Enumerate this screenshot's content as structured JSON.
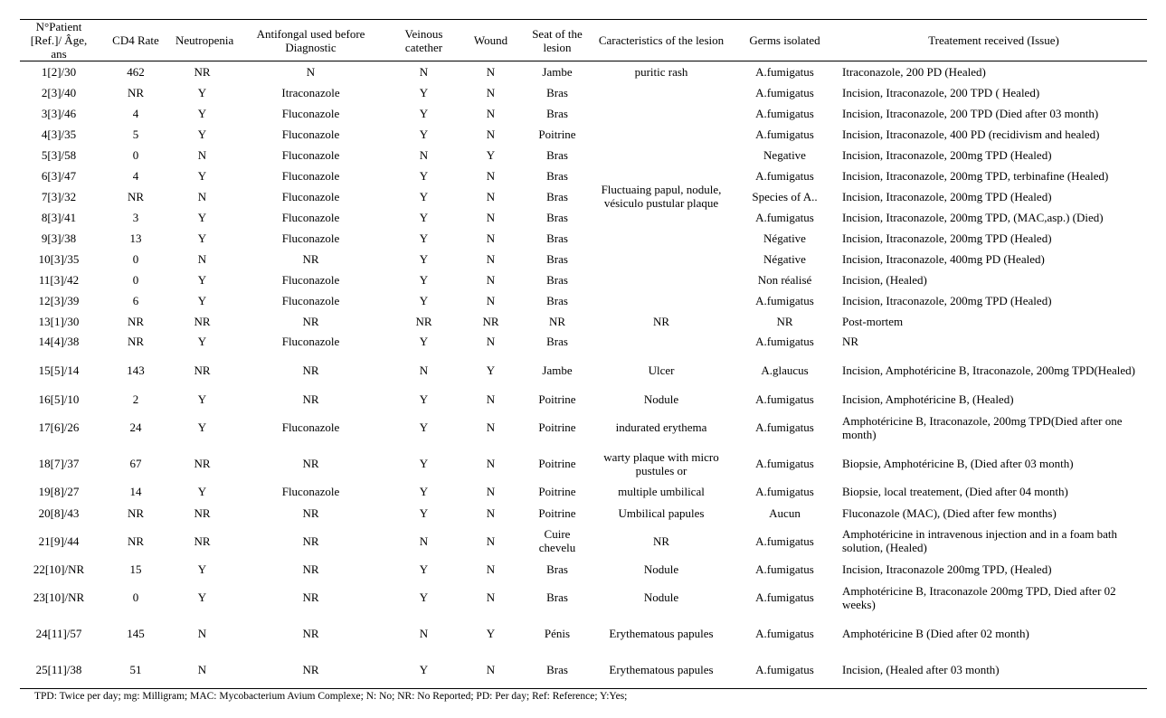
{
  "headers": [
    "N°Patient [Ref.]/ Âge, ans",
    "CD4 Rate",
    "Neutropenia",
    "Antifongal used before Diagnostic",
    "Veinous catether",
    "Wound",
    "Seat of the lesion",
    "Caracteristics of the lesion",
    "Germs isolated",
    "Treatement received (Issue)"
  ],
  "rows": [
    [
      "1[2]/30",
      "462",
      "NR",
      "N",
      "N",
      "N",
      "Jambe",
      "puritic rash",
      "A.fumigatus",
      "Itraconazole, 200 PD (Healed)"
    ],
    [
      "2[3]/40",
      "NR",
      "Y",
      "Itraconazole",
      "Y",
      "N",
      "Bras",
      "Fluctuaing papul, nodule, vésiculo pustular plaque",
      "A.fumigatus",
      "Incision, Itraconazole, 200 TPD ( Healed)"
    ],
    [
      "3[3]/46",
      "4",
      "Y",
      "Fluconazole",
      "Y",
      "N",
      "Bras",
      null,
      "A.fumigatus",
      "Incision, Itraconazole, 200 TPD (Died after 03 month)"
    ],
    [
      "4[3]/35",
      "5",
      "Y",
      "Fluconazole",
      "Y",
      "N",
      "Poitrine",
      null,
      "A.fumigatus",
      "Incision, Itraconazole, 400 PD (recidivism and healed)"
    ],
    [
      "5[3]/58",
      "0",
      "N",
      "Fluconazole",
      "N",
      "Y",
      "Bras",
      null,
      "Negative",
      "Incision, Itraconazole, 200mg TPD (Healed)"
    ],
    [
      "6[3]/47",
      "4",
      "Y",
      "Fluconazole",
      "Y",
      "N",
      "Bras",
      null,
      "A.fumigatus",
      "Incision, Itraconazole, 200mg TPD, terbinafine (Healed)"
    ],
    [
      "7[3]/32",
      "NR",
      "N",
      "Fluconazole",
      "Y",
      "N",
      "Bras",
      null,
      "Species of A..",
      "Incision, Itraconazole, 200mg TPD (Healed)"
    ],
    [
      "8[3]/41",
      "3",
      "Y",
      "Fluconazole",
      "Y",
      "N",
      "Bras",
      null,
      "A.fumigatus",
      "Incision, Itraconazole, 200mg TPD, (MAC,asp.) (Died)"
    ],
    [
      "9[3]/38",
      "13",
      "Y",
      "Fluconazole",
      "Y",
      "N",
      "Bras",
      null,
      "Négative",
      "Incision, Itraconazole, 200mg TPD (Healed)"
    ],
    [
      "10[3]/35",
      "0",
      "N",
      "NR",
      "Y",
      "N",
      "Bras",
      null,
      "Négative",
      "Incision, Itraconazole, 400mg PD (Healed)"
    ],
    [
      "11[3]/42",
      "0",
      "Y",
      "Fluconazole",
      "Y",
      "N",
      "Bras",
      null,
      "Non réalisé",
      "Incision, (Healed)"
    ],
    [
      "12[3]/39",
      "6",
      "Y",
      "Fluconazole",
      "Y",
      "N",
      "Bras",
      null,
      "A.fumigatus",
      "Incision, Itraconazole, 200mg TPD (Healed)"
    ],
    [
      "13[1]/30",
      "NR",
      "NR",
      "NR",
      "NR",
      "NR",
      "NR",
      "NR",
      "NR",
      "Post-mortem"
    ],
    [
      "14[4]/38",
      "NR",
      "Y",
      "Fluconazole",
      "Y",
      "N",
      "Bras",
      "",
      "A.fumigatus",
      "NR"
    ],
    [
      "15[5]/14",
      "143",
      "NR",
      "NR",
      "N",
      "Y",
      "Jambe",
      "Ulcer",
      "A.glaucus",
      "Incision, Amphotéricine B, Itraconazole, 200mg TPD(Healed)"
    ],
    [
      "16[5]/10",
      "2",
      "Y",
      "NR",
      "Y",
      "N",
      "Poitrine",
      "Nodule",
      "A.fumigatus",
      "Incision, Amphotéricine B, (Healed)"
    ],
    [
      "17[6]/26",
      "24",
      "Y",
      "Fluconazole",
      "Y",
      "N",
      "Poitrine",
      "indurated erythema",
      "A.fumigatus",
      "Amphotéricine B, Itraconazole, 200mg TPD(Died after one month)"
    ],
    [
      "18[7]/37",
      "67",
      "NR",
      "NR",
      "Y",
      "N",
      "Poitrine",
      "warty plaque with micro pustules or",
      "A.fumigatus",
      "Biopsie, Amphotéricine B, (Died after 03 month)"
    ],
    [
      "19[8]/27",
      "14",
      "Y",
      "Fluconazole",
      "Y",
      "N",
      "Poitrine",
      "multiple umbilical",
      "A.fumigatus",
      "Biopsie, local treatement, (Died after 04 month)"
    ],
    [
      "20[8]/43",
      "NR",
      "NR",
      "NR",
      "Y",
      "N",
      "Poitrine",
      "Umbilical papules",
      "Aucun",
      "Fluconazole (MAC), (Died after few months)"
    ],
    [
      "21[9]/44",
      "NR",
      "NR",
      "NR",
      "N",
      "N",
      "Cuire chevelu",
      "NR",
      "A.fumigatus",
      "Amphotéricine in intravenous injection and in a foam bath solution, (Healed)"
    ],
    [
      "22[10]/NR",
      "15",
      "Y",
      "NR",
      "Y",
      "N",
      "Bras",
      "Nodule",
      "A.fumigatus",
      "Incision, Itraconazole 200mg TPD, (Healed)"
    ],
    [
      "23[10]/NR",
      "0",
      "Y",
      "NR",
      "Y",
      "N",
      "Bras",
      "Nodule",
      "A.fumigatus",
      "Amphotéricine B, Itraconazole 200mg TPD, Died after 02 weeks)"
    ],
    [
      "24[11]/57",
      "145",
      "N",
      "NR",
      "N",
      "Y",
      "Pénis",
      "Erythematous papules",
      "A.fumigatus",
      "Amphotéricine B (Died after 02 month)"
    ],
    [
      "25[11]/38",
      "51",
      "N",
      "NR",
      "Y",
      "N",
      "Bras",
      "Erythematous papules",
      "A.fumigatus",
      "Incision, (Healed after 03 month)"
    ]
  ],
  "footnote": "TPD: Twice per day; mg: Milligram; MAC: Mycobacterium Avium Complexe; N: No; NR: No Reported; PD: Per day; Ref: Reference; Y:Yes;"
}
